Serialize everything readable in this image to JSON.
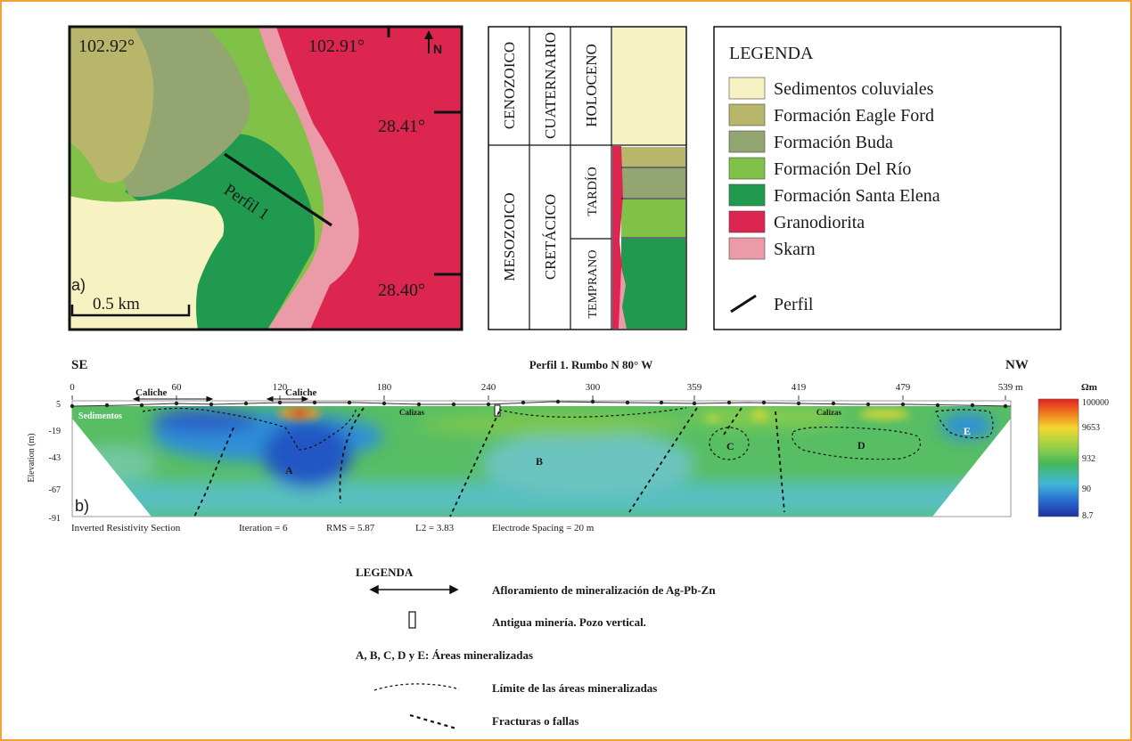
{
  "colors": {
    "sedimentos": "#f6f2c2",
    "eagle_ford": "#b7b66a",
    "buda": "#93a672",
    "del_rio": "#7fc247",
    "santa_elena": "#1f9a4f",
    "granodiorita": "#dc2650",
    "skarn": "#eb9aa8",
    "frame": "#f2a23a"
  },
  "map": {
    "coord_lon_left": "102.92°",
    "coord_lon_right": "102.91°",
    "coord_lat_top": "28.41°",
    "coord_lat_bottom": "28.40°",
    "north": "N",
    "panel_letter": "a)",
    "scale": "0.5 km",
    "profile_label": "Perfil 1"
  },
  "stratigraphy": {
    "era_top": "CENOZOICO",
    "period_top": "CUATERNARIO",
    "epoch_top": "HOLOCENO",
    "era_bottom": "MESOZOICO",
    "period_bottom": "CRETÁCICO",
    "epoch_late": "TARDÍO",
    "epoch_early": "TEMPRANO"
  },
  "legend": {
    "title": "LEGENDA",
    "items": [
      {
        "label": "Sedimentos coluviales",
        "color": "#f6f2c2"
      },
      {
        "label": "Formación Eagle Ford",
        "color": "#b7b66a"
      },
      {
        "label": "Formación Buda",
        "color": "#93a672"
      },
      {
        "label": "Formación Del Río",
        "color": "#7fc247"
      },
      {
        "label": "Formación Santa Elena",
        "color": "#1f9a4f"
      },
      {
        "label": "Granodiorita",
        "color": "#dc2650"
      },
      {
        "label": "Skarn",
        "color": "#eb9aa8"
      }
    ],
    "profile": "Perfil"
  },
  "section": {
    "left_dir": "SE",
    "right_dir": "NW",
    "title": "Perfil 1. Rumbo N 80° W",
    "panel_letter": "b)",
    "ylabel": "Elevation (m)",
    "x_ticks": [
      "0",
      "60",
      "120",
      "180",
      "240",
      "300",
      "359",
      "419",
      "479",
      "539"
    ],
    "x_unit": "m",
    "y_ticks": [
      "5",
      "-19",
      "-43",
      "-67",
      "-91"
    ],
    "cb_unit": "Ωm",
    "cb_ticks": [
      "100000",
      "9653",
      "932",
      "90",
      "8.7"
    ],
    "labels": {
      "caliche1": "Caliche",
      "caliche2": "Caliche",
      "sedimentos": "Sedimentos",
      "calizas1": "Calizas",
      "calizas2": "Calizas"
    },
    "areas": [
      "A",
      "B",
      "C",
      "D",
      "E"
    ],
    "footer": {
      "section": "Inverted Resistivity Section",
      "iteration": "Iteration = 6",
      "rms": "RMS = 5.87",
      "l2": "L2 = 3.83",
      "spacing": "Electrode Spacing = 20 m"
    }
  },
  "bottom_legend": {
    "title": "LEGENDA",
    "items": [
      "Afloramiento de mineralización de Ag-Pb-Zn",
      "Antigua minería. Pozo vertical.",
      "A, B, C, D y E: Áreas mineralizadas",
      "Límite de las áreas mineralizadas",
      "Fracturas o fallas"
    ]
  }
}
